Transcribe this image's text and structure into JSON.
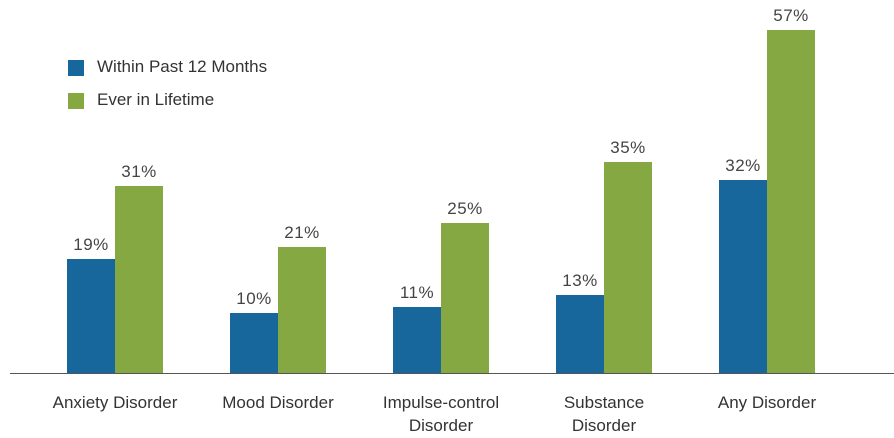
{
  "chart_data": {
    "type": "bar",
    "categories": [
      "Anxiety Disorder",
      "Mood Disorder",
      "Impulse-control Disorder",
      "Substance Disorder",
      "Any Disorder"
    ],
    "series": [
      {
        "name": "Within Past 12 Months",
        "color": "#17679c",
        "values": [
          19,
          10,
          11,
          13,
          32
        ],
        "value_labels": [
          "19%",
          "10%",
          "11%",
          "13%",
          "32%"
        ]
      },
      {
        "name": "Ever in Lifetime",
        "color": "#86a843",
        "values": [
          31,
          21,
          25,
          35,
          57
        ],
        "value_labels": [
          "31%",
          "21%",
          "25%",
          "35%",
          "57%"
        ]
      }
    ],
    "legend": "upper left"
  }
}
